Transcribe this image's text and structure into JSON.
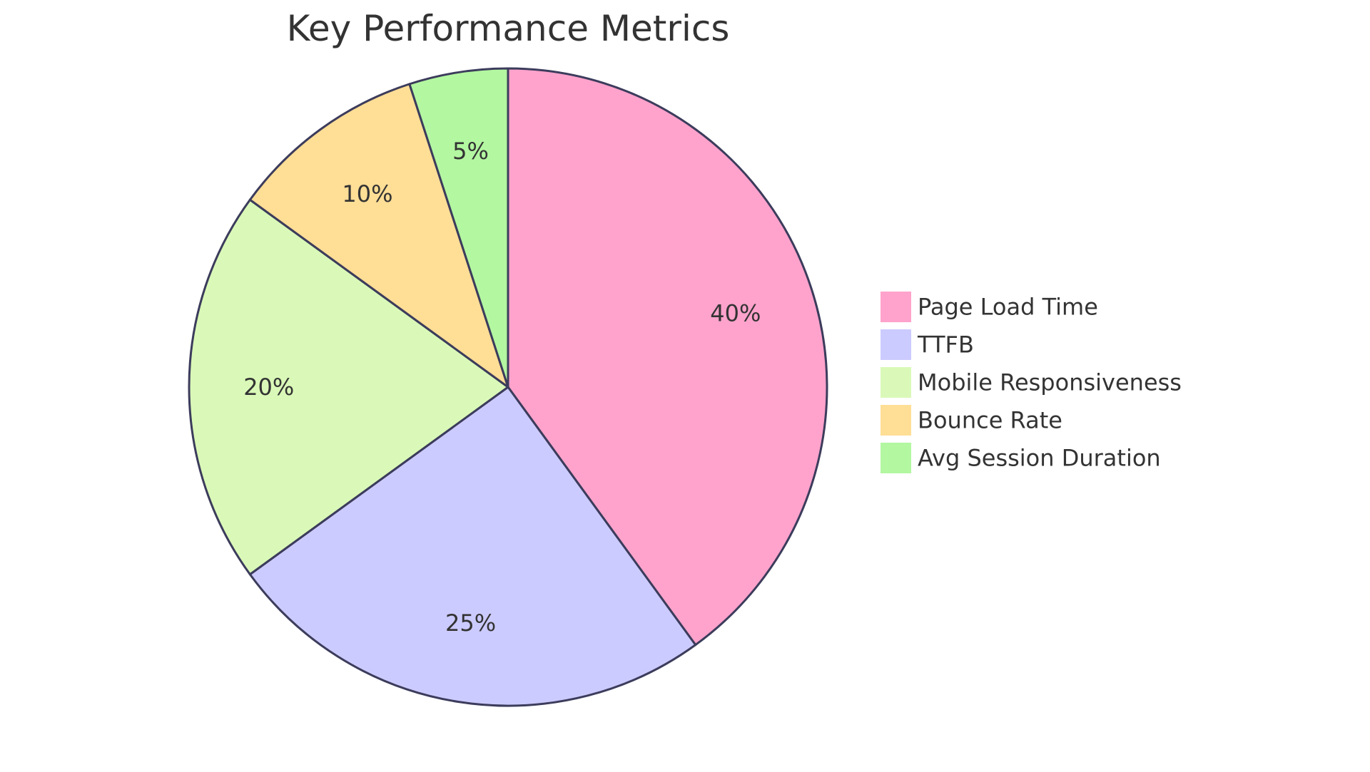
{
  "chart_data": {
    "type": "pie",
    "title": "Key Performance Metrics",
    "legend": "right",
    "labels": [
      "40%",
      "25%",
      "20%",
      "10%",
      "5%"
    ],
    "series": [
      {
        "name": "Page Load Time",
        "value": 40,
        "color": "#ffa3cc"
      },
      {
        "name": "TTFB",
        "value": 25,
        "color": "#cccbff"
      },
      {
        "name": "Mobile Responsiveness",
        "value": 20,
        "color": "#daf9b8"
      },
      {
        "name": "Bounce Rate",
        "value": 10,
        "color": "#ffde96"
      },
      {
        "name": "Avg Session Duration",
        "value": 5,
        "color": "#b3f7a1"
      }
    ]
  }
}
